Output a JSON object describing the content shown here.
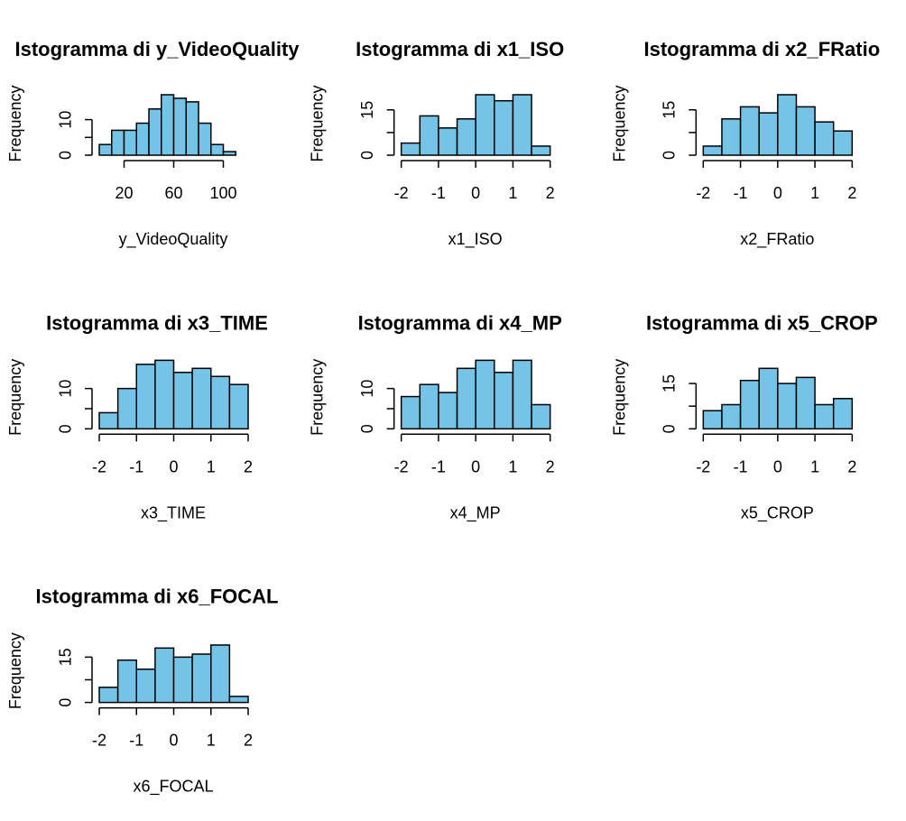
{
  "colors": {
    "bar_fill": "#75c4e8",
    "stroke": "#000000",
    "background": "#ffffff"
  },
  "ylabel": "Frequency",
  "chart_data": [
    {
      "type": "bar",
      "title": "Istogramma di y_VideoQuality",
      "xlabel": "y_VideoQuality",
      "ylabel": "Frequency",
      "bins": [
        [
          0,
          10
        ],
        [
          10,
          20
        ],
        [
          20,
          30
        ],
        [
          30,
          40
        ],
        [
          40,
          50
        ],
        [
          50,
          60
        ],
        [
          60,
          70
        ],
        [
          70,
          80
        ],
        [
          80,
          90
        ],
        [
          90,
          100
        ],
        [
          100,
          110
        ],
        [
          110,
          120
        ]
      ],
      "values": [
        3,
        7,
        7,
        9,
        13,
        17,
        16,
        15,
        9,
        3,
        1,
        0
      ],
      "xticks": [
        20,
        60,
        100
      ],
      "yticks": [
        0,
        10
      ],
      "xlim": [
        0,
        120
      ],
      "ylim": [
        0,
        17
      ]
    },
    {
      "type": "bar",
      "title": "Istogramma di x1_ISO",
      "xlabel": "x1_ISO",
      "ylabel": "Frequency",
      "bins": [
        [
          -2,
          -1.5
        ],
        [
          -1.5,
          -1
        ],
        [
          -1,
          -0.5
        ],
        [
          -0.5,
          0
        ],
        [
          0,
          0.5
        ],
        [
          0.5,
          1
        ],
        [
          1,
          1.5
        ],
        [
          1.5,
          2
        ]
      ],
      "values": [
        4,
        13,
        9,
        12,
        20,
        18,
        20,
        3
      ],
      "xticks": [
        -2,
        -1,
        0,
        1,
        2
      ],
      "yticks": [
        0,
        15
      ],
      "xlim": [
        -2,
        2
      ],
      "ylim": [
        0,
        20
      ]
    },
    {
      "type": "bar",
      "title": "Istogramma di x2_FRatio",
      "xlabel": "x2_FRatio",
      "ylabel": "Frequency",
      "bins": [
        [
          -2,
          -1.5
        ],
        [
          -1.5,
          -1
        ],
        [
          -1,
          -0.5
        ],
        [
          -0.5,
          0
        ],
        [
          0,
          0.5
        ],
        [
          0.5,
          1
        ],
        [
          1,
          1.5
        ],
        [
          1.5,
          2
        ]
      ],
      "values": [
        3,
        12,
        16,
        14,
        20,
        16,
        11,
        8
      ],
      "xticks": [
        -2,
        -1,
        0,
        1,
        2
      ],
      "yticks": [
        0,
        15
      ],
      "xlim": [
        -2,
        2
      ],
      "ylim": [
        0,
        20
      ]
    },
    {
      "type": "bar",
      "title": "Istogramma di x3_TIME",
      "xlabel": "x3_TIME",
      "ylabel": "Frequency",
      "bins": [
        [
          -2,
          -1.5
        ],
        [
          -1.5,
          -1
        ],
        [
          -1,
          -0.5
        ],
        [
          -0.5,
          0
        ],
        [
          0,
          0.5
        ],
        [
          0.5,
          1
        ],
        [
          1,
          1.5
        ],
        [
          1.5,
          2
        ]
      ],
      "values": [
        4,
        10,
        16,
        17,
        14,
        15,
        13,
        11
      ],
      "xticks": [
        -2,
        -1,
        0,
        1,
        2
      ],
      "yticks": [
        0,
        10
      ],
      "xlim": [
        -2,
        2
      ],
      "ylim": [
        0,
        15
      ]
    },
    {
      "type": "bar",
      "title": "Istogramma di x4_MP",
      "xlabel": "x4_MP",
      "ylabel": "Frequency",
      "bins": [
        [
          -2,
          -1.5
        ],
        [
          -1.5,
          -1
        ],
        [
          -1,
          -0.5
        ],
        [
          -0.5,
          0
        ],
        [
          0,
          0.5
        ],
        [
          0.5,
          1
        ],
        [
          1,
          1.5
        ],
        [
          1.5,
          2
        ]
      ],
      "values": [
        8,
        11,
        9,
        15,
        17,
        14,
        17,
        6
      ],
      "xticks": [
        -2,
        -1,
        0,
        1,
        2
      ],
      "yticks": [
        0,
        10
      ],
      "xlim": [
        -2,
        2
      ],
      "ylim": [
        0,
        15
      ]
    },
    {
      "type": "bar",
      "title": "Istogramma di x5_CROP",
      "xlabel": "x5_CROP",
      "ylabel": "Frequency",
      "bins": [
        [
          -2,
          -1.5
        ],
        [
          -1.5,
          -1
        ],
        [
          -1,
          -0.5
        ],
        [
          -0.5,
          0
        ],
        [
          0,
          0.5
        ],
        [
          0.5,
          1
        ],
        [
          1,
          1.5
        ],
        [
          1.5,
          2
        ]
      ],
      "values": [
        6,
        8,
        16,
        20,
        15,
        17,
        8,
        10
      ],
      "xticks": [
        -2,
        -1,
        0,
        1,
        2
      ],
      "yticks": [
        0,
        15
      ],
      "xlim": [
        -2,
        2
      ],
      "ylim": [
        0,
        20
      ]
    },
    {
      "type": "bar",
      "title": "Istogramma di x6_FOCAL",
      "xlabel": "x6_FOCAL",
      "ylabel": "Frequency",
      "bins": [
        [
          -2,
          -1.5
        ],
        [
          -1.5,
          -1
        ],
        [
          -1,
          -0.5
        ],
        [
          -0.5,
          0
        ],
        [
          0,
          0.5
        ],
        [
          0.5,
          1
        ],
        [
          1,
          1.5
        ],
        [
          1.5,
          2
        ]
      ],
      "values": [
        5,
        14,
        11,
        18,
        15,
        16,
        19,
        2
      ],
      "xticks": [
        -2,
        -1,
        0,
        1,
        2
      ],
      "yticks": [
        0,
        15
      ],
      "xlim": [
        -2,
        2
      ],
      "ylim": [
        0,
        20
      ]
    }
  ]
}
